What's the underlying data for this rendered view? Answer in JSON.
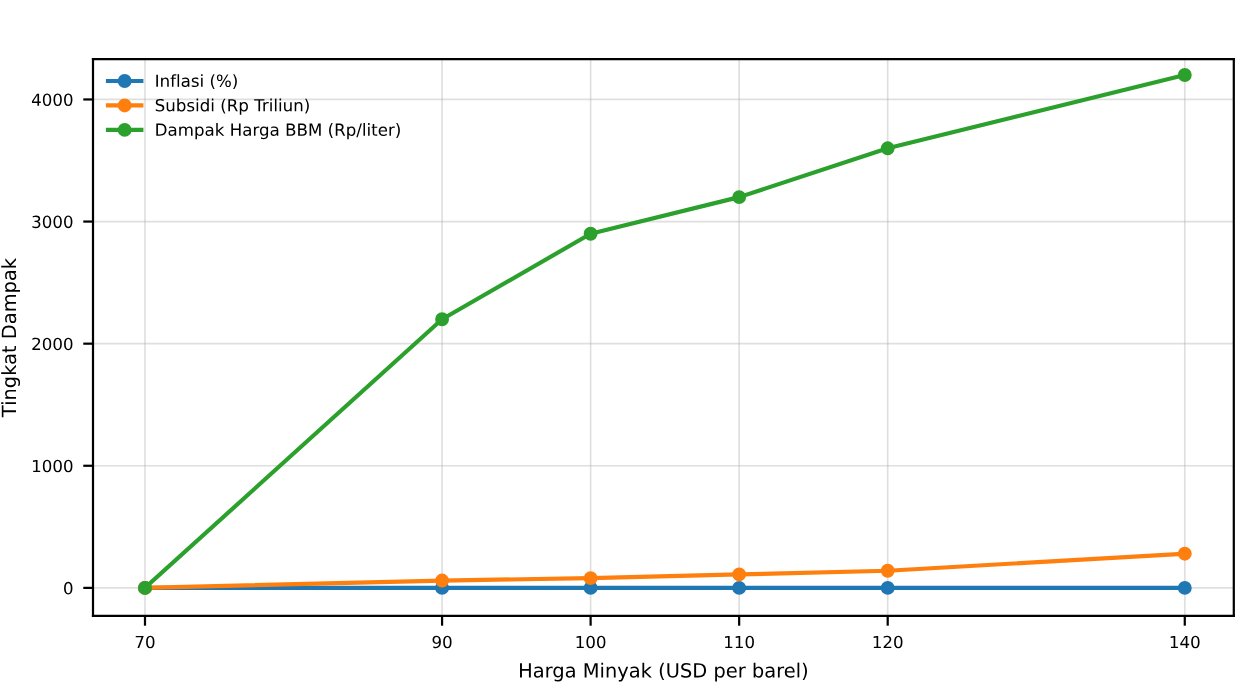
{
  "chart_data": {
    "type": "line",
    "xlabel": "Harga Minyak (USD per barel)",
    "ylabel": "Tingkat Dampak",
    "x": [
      70,
      90,
      100,
      110,
      120,
      140
    ],
    "series": [
      {
        "name": "Inflasi (%)",
        "color": "#1f77b4",
        "values": [
          0,
          0,
          0,
          0,
          0,
          0
        ]
      },
      {
        "name": "Subsidi (Rp Triliun)",
        "color": "#ff7f0e",
        "values": [
          0,
          60,
          80,
          110,
          140,
          280
        ]
      },
      {
        "name": "Dampak Harga BBM (Rp/liter)",
        "color": "#2ca02c",
        "values": [
          0,
          2200,
          2900,
          3200,
          3600,
          4200
        ]
      }
    ],
    "xlim": [
      66.5,
      143.3
    ],
    "ylim": [
      -230,
      4330
    ],
    "xticks": [
      70,
      90,
      100,
      110,
      120,
      140
    ],
    "yticks": [
      0,
      1000,
      2000,
      3000,
      4000
    ],
    "grid": true,
    "legend": "top left",
    "marker": "circle",
    "line_style": "solid"
  }
}
